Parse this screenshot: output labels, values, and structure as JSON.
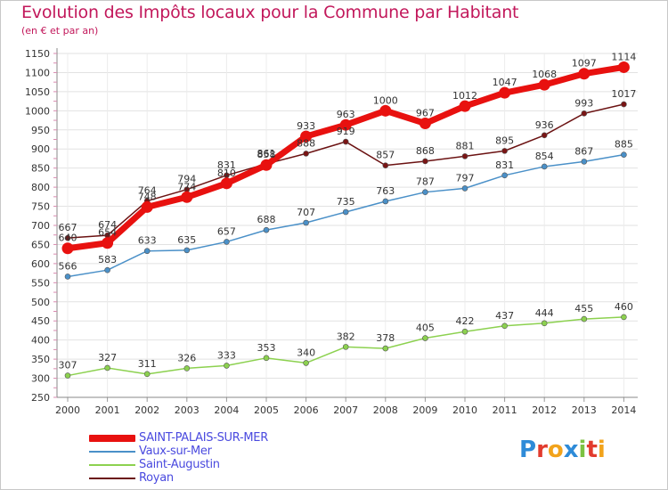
{
  "header": {
    "title": "Evolution des Impôts locaux pour la Commune par Habitant",
    "subtitle": "(en € et par an)"
  },
  "logo": {
    "text": "Proxiti",
    "letters": [
      {
        "ch": "P",
        "color": "#2e8bd8"
      },
      {
        "ch": "r",
        "color": "#e23b2e"
      },
      {
        "ch": "o",
        "color": "#f2a31b"
      },
      {
        "ch": "x",
        "color": "#2e8bd8"
      },
      {
        "ch": "i",
        "color": "#7cc242"
      },
      {
        "ch": "t",
        "color": "#e23b2e"
      },
      {
        "ch": "i",
        "color": "#f2a31b"
      }
    ]
  },
  "chart_data": {
    "type": "line",
    "x": [
      "2000",
      "2001",
      "2002",
      "2003",
      "2004",
      "2005",
      "2006",
      "2007",
      "2008",
      "2009",
      "2010",
      "2011",
      "2012",
      "2013",
      "2014"
    ],
    "ylim": [
      250,
      1150
    ],
    "yticks": [
      250,
      300,
      350,
      400,
      450,
      500,
      550,
      600,
      650,
      700,
      750,
      800,
      850,
      900,
      950,
      1000,
      1050,
      1100,
      1150
    ],
    "grid": true,
    "legend_position": "bottom-left",
    "series": [
      {
        "name": "Royan",
        "color": "#6b1212",
        "values": [
          667,
          674,
          764,
          794,
          831,
          861,
          888,
          919,
          857,
          868,
          881,
          895,
          936,
          993,
          1017
        ]
      },
      {
        "name": "Vaux-sur-Mer",
        "color": "#4a90c8",
        "values": [
          566,
          583,
          633,
          635,
          657,
          688,
          707,
          735,
          763,
          787,
          797,
          831,
          854,
          867,
          885
        ]
      },
      {
        "name": "Saint-Augustin",
        "color": "#8cd14f",
        "values": [
          307,
          327,
          311,
          326,
          333,
          353,
          340,
          382,
          378,
          405,
          422,
          437,
          444,
          455,
          460
        ]
      },
      {
        "name": "SAINT-PALAIS-SUR-MER",
        "color": "#e8110f",
        "values": [
          640,
          654,
          748,
          774,
          810,
          858,
          933,
          963,
          1000,
          967,
          1012,
          1047,
          1068,
          1097,
          1114
        ]
      }
    ]
  }
}
